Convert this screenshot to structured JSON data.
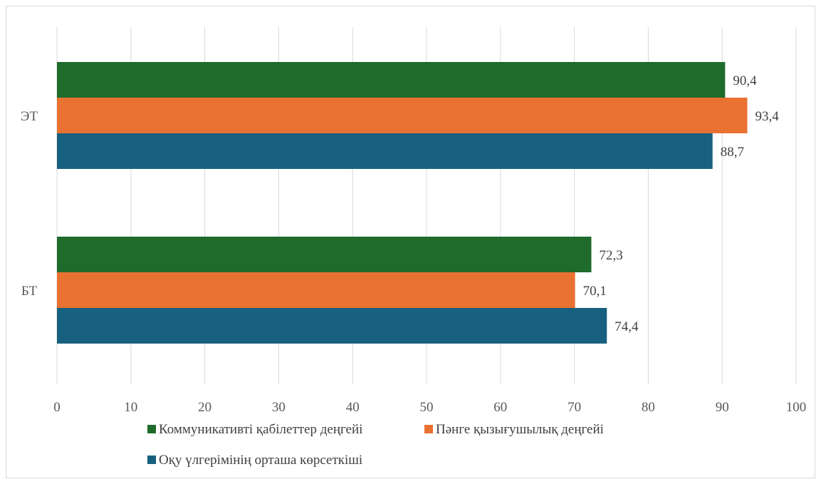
{
  "chart_data": {
    "type": "bar",
    "orientation": "horizontal",
    "categories": [
      "ЭТ",
      "БТ"
    ],
    "series": [
      {
        "name": "Коммуникативті қабілеттер деңгейі",
        "color": "#1e6b2c",
        "values": [
          90.4,
          72.3
        ],
        "labels": [
          "90,4",
          "72,3"
        ]
      },
      {
        "name": "Пәнге қызығушылық деңгейі",
        "color": "#e97132",
        "values": [
          93.4,
          70.1
        ],
        "labels": [
          "93,4",
          "70,1"
        ]
      },
      {
        "name": "Оқу үлгерімінің орташа көрсеткіші",
        "color": "#17607f",
        "values": [
          88.7,
          74.4
        ],
        "labels": [
          "88,7",
          "74,4"
        ]
      }
    ],
    "xlim": [
      0,
      100
    ],
    "xticks": [
      "0",
      "10",
      "20",
      "30",
      "40",
      "50",
      "60",
      "70",
      "80",
      "90",
      "100"
    ],
    "grid": true,
    "legend_position": "bottom"
  }
}
